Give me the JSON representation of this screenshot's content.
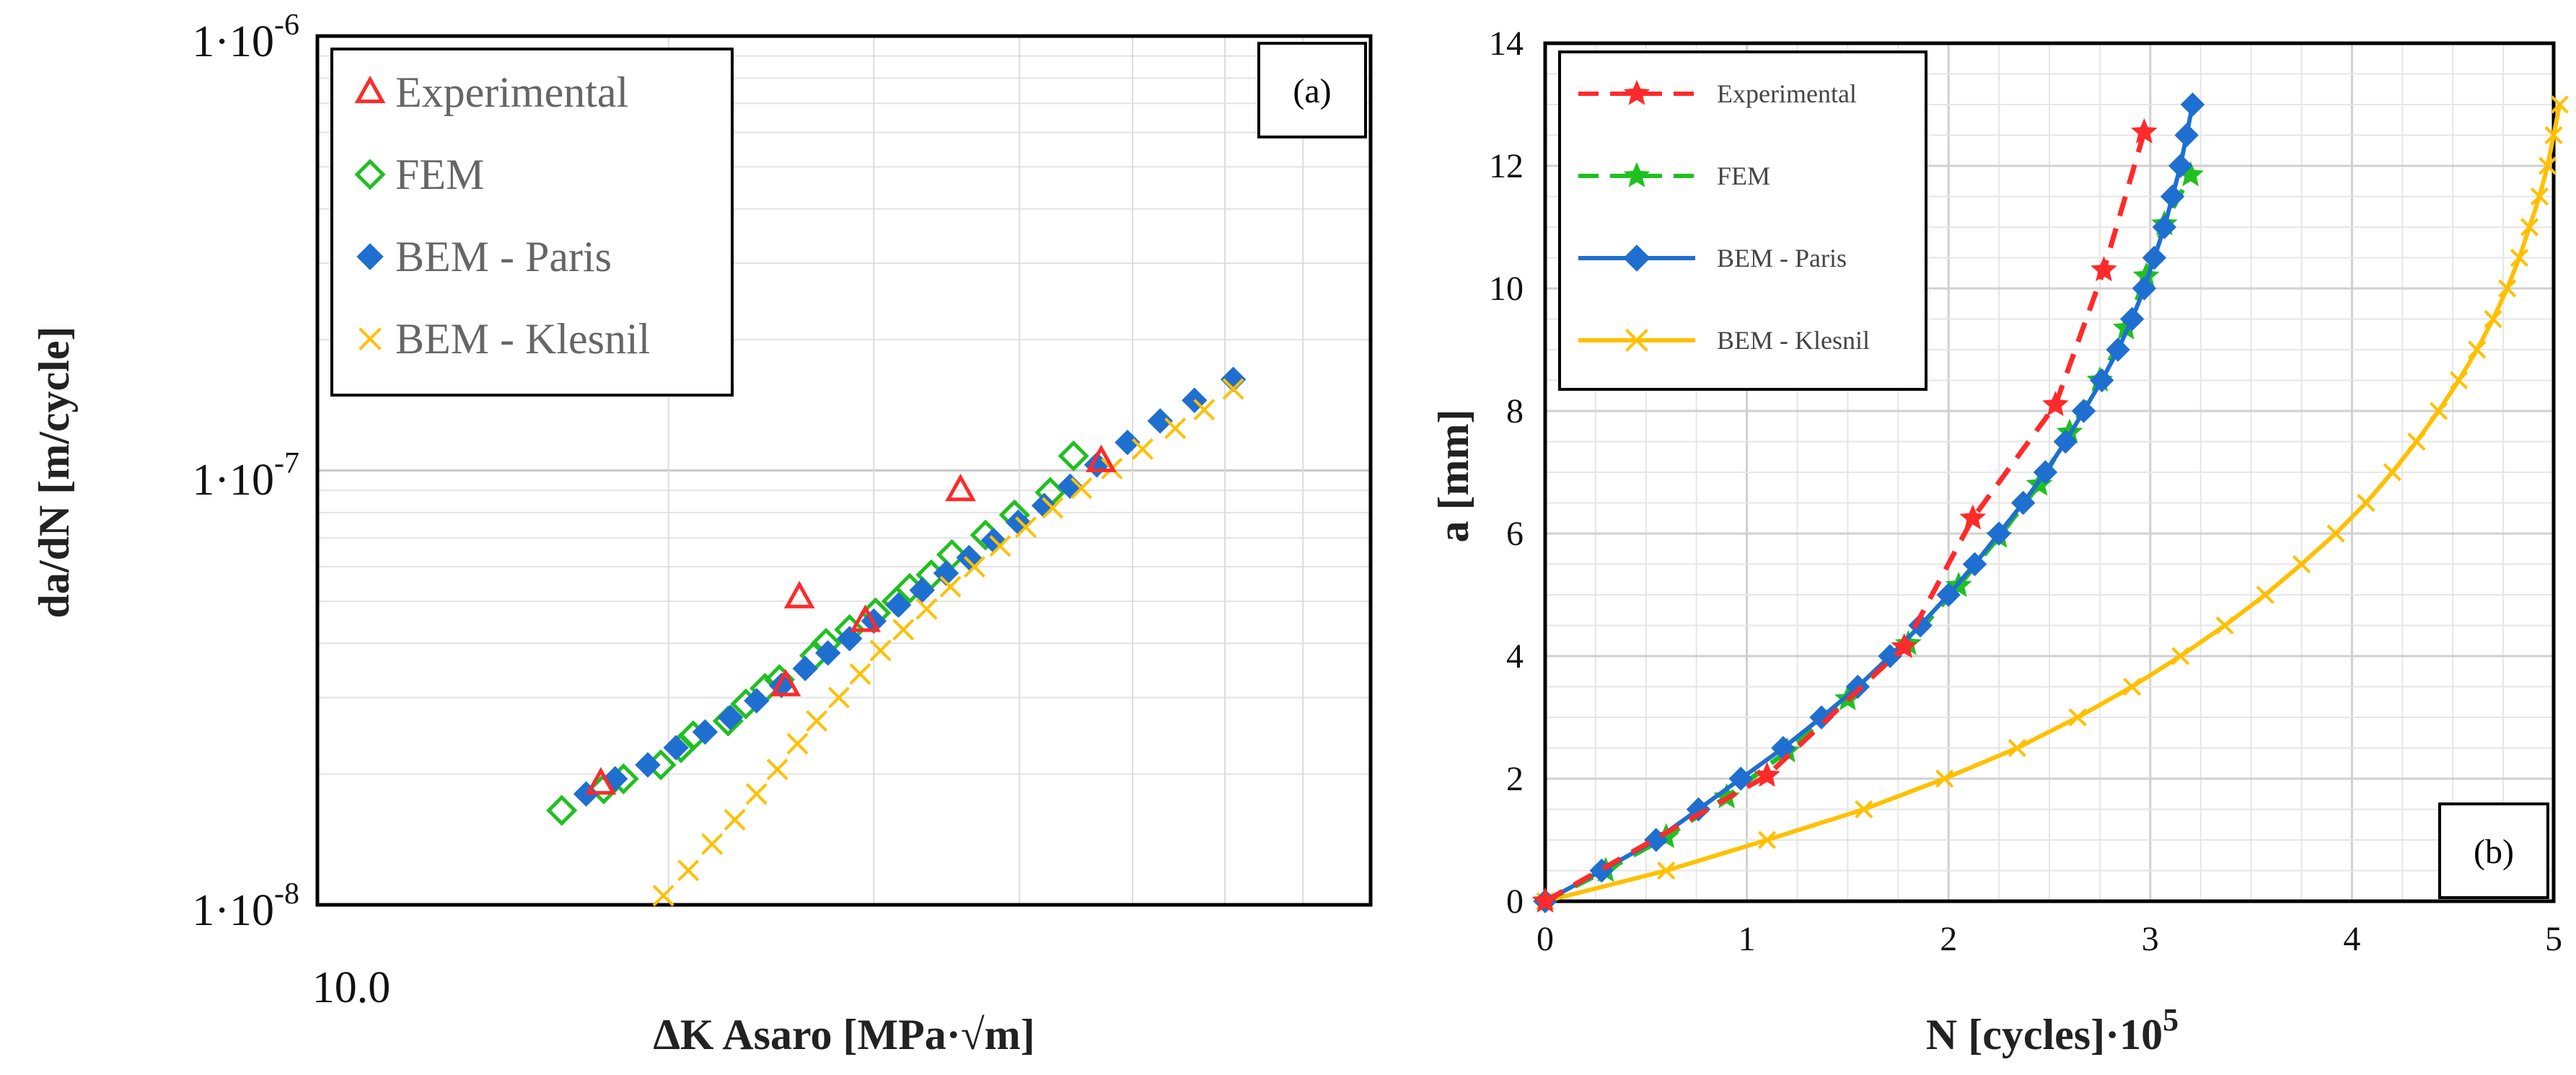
{
  "chart_data": [
    {
      "panel": "a",
      "type": "scatter",
      "panel_label": "(a)",
      "xscale": "log",
      "yscale": "log",
      "xlabel": "ΔK Asaro [MPa·√m]",
      "ylabel": "da/dN [m/cycle]",
      "xlim": [
        10,
        80
      ],
      "ylim": [
        1e-08,
        1e-06
      ],
      "x_tick_labels": [
        {
          "value": 10,
          "label": "10.0"
        }
      ],
      "y_tick_labels": [
        {
          "value": 1e-06,
          "label": "1·10",
          "exp": "-6"
        },
        {
          "value": 1e-07,
          "label": "1·10",
          "exp": "-7"
        },
        {
          "value": 1e-08,
          "label": "1·10",
          "exp": "-8"
        }
      ],
      "grid": true,
      "legend_position": "top-left",
      "series": [
        {
          "name": "Experimental",
          "marker": "triangle-open",
          "color": "#ff2a2a",
          "points": [
            [
              17.5,
              1.9e-08
            ],
            [
              25.2,
              3.2e-08
            ],
            [
              25.9,
              5.1e-08
            ],
            [
              29.5,
              4.5e-08
            ],
            [
              35.6,
              9e-08
            ],
            [
              47.0,
              1.05e-07
            ]
          ]
        },
        {
          "name": "FEM",
          "marker": "diamond-open",
          "color": "#20c020",
          "points": [
            [
              16.2,
              1.65e-08
            ],
            [
              17.6,
              1.85e-08
            ],
            [
              18.3,
              1.95e-08
            ],
            [
              19.7,
              2.1e-08
            ],
            [
              20.5,
              2.3e-08
            ],
            [
              21.0,
              2.45e-08
            ],
            [
              22.5,
              2.65e-08
            ],
            [
              23.3,
              2.9e-08
            ],
            [
              24.2,
              3.15e-08
            ],
            [
              24.9,
              3.3e-08
            ],
            [
              26.7,
              3.75e-08
            ],
            [
              27.3,
              4e-08
            ],
            [
              28.6,
              4.3e-08
            ],
            [
              30.1,
              4.7e-08
            ],
            [
              31.4,
              5e-08
            ],
            [
              32.2,
              5.35e-08
            ],
            [
              33.6,
              5.75e-08
            ],
            [
              35.0,
              6.4e-08
            ],
            [
              37.4,
              7.1e-08
            ],
            [
              39.6,
              7.9e-08
            ],
            [
              42.5,
              8.9e-08
            ],
            [
              44.5,
              1.08e-07
            ]
          ]
        },
        {
          "name": "BEM - Paris",
          "marker": "diamond-filled",
          "color": "#1f6fd0",
          "points": [
            [
              17.0,
              1.8e-08
            ],
            [
              18.0,
              1.95e-08
            ],
            [
              19.2,
              2.1e-08
            ],
            [
              20.3,
              2.3e-08
            ],
            [
              21.5,
              2.5e-08
            ],
            [
              22.6,
              2.7e-08
            ],
            [
              23.8,
              2.95e-08
            ],
            [
              25.0,
              3.2e-08
            ],
            [
              26.2,
              3.5e-08
            ],
            [
              27.4,
              3.8e-08
            ],
            [
              28.6,
              4.1e-08
            ],
            [
              30.0,
              4.5e-08
            ],
            [
              31.5,
              4.9e-08
            ],
            [
              33.0,
              5.3e-08
            ],
            [
              34.6,
              5.8e-08
            ],
            [
              36.2,
              6.3e-08
            ],
            [
              38.0,
              6.9e-08
            ],
            [
              39.9,
              7.6e-08
            ],
            [
              42.0,
              8.3e-08
            ],
            [
              44.2,
              9.2e-08
            ],
            [
              46.6,
              1.03e-07
            ],
            [
              49.5,
              1.16e-07
            ],
            [
              52.8,
              1.3e-07
            ],
            [
              56.5,
              1.45e-07
            ],
            [
              61.0,
              1.62e-07
            ]
          ]
        },
        {
          "name": "BEM - Klesnil",
          "marker": "x",
          "color": "#ffc000",
          "points": [
            [
              19.8,
              1.05e-08
            ],
            [
              20.8,
              1.2e-08
            ],
            [
              21.8,
              1.38e-08
            ],
            [
              22.8,
              1.57e-08
            ],
            [
              23.8,
              1.8e-08
            ],
            [
              24.8,
              2.05e-08
            ],
            [
              25.8,
              2.35e-08
            ],
            [
              26.8,
              2.65e-08
            ],
            [
              28.0,
              3e-08
            ],
            [
              29.2,
              3.4e-08
            ],
            [
              30.4,
              3.85e-08
            ],
            [
              31.8,
              4.3e-08
            ],
            [
              33.3,
              4.8e-08
            ],
            [
              34.9,
              5.4e-08
            ],
            [
              36.6,
              6e-08
            ],
            [
              38.5,
              6.7e-08
            ],
            [
              40.5,
              7.4e-08
            ],
            [
              42.7,
              8.2e-08
            ],
            [
              45.2,
              9.1e-08
            ],
            [
              48.0,
              1.01e-07
            ],
            [
              51.0,
              1.12e-07
            ],
            [
              54.4,
              1.25e-07
            ],
            [
              57.6,
              1.38e-07
            ],
            [
              61.0,
              1.54e-07
            ]
          ]
        }
      ]
    },
    {
      "panel": "b",
      "type": "line",
      "panel_label": "(b)",
      "xlabel": "N [cycles]·10",
      "xlabel_exp": "5",
      "ylabel": "a [mm]",
      "xlim": [
        0,
        5
      ],
      "ylim": [
        0,
        14
      ],
      "x_ticks": [
        "0",
        "1",
        "2",
        "3",
        "4",
        "5"
      ],
      "y_ticks": [
        "0",
        "2",
        "4",
        "6",
        "8",
        "10",
        "12",
        "14"
      ],
      "grid": true,
      "legend_position": "top-left",
      "series": [
        {
          "name": "Experimental",
          "marker": "star",
          "line": "dashed",
          "color": "#ff2a2a",
          "points": [
            [
              0,
              0
            ],
            [
              1.1,
              2.05
            ],
            [
              1.78,
              4.15
            ],
            [
              2.12,
              6.25
            ],
            [
              2.53,
              8.1
            ],
            [
              2.77,
              10.3
            ],
            [
              2.97,
              12.55
            ]
          ]
        },
        {
          "name": "FEM",
          "marker": "star",
          "line": "dashed",
          "color": "#20c020",
          "points": [
            [
              0,
              0
            ],
            [
              0.3,
              0.5
            ],
            [
              0.6,
              1.05
            ],
            [
              0.9,
              1.7
            ],
            [
              1.2,
              2.45
            ],
            [
              1.5,
              3.3
            ],
            [
              1.8,
              4.2
            ],
            [
              2.05,
              5.15
            ],
            [
              2.25,
              5.95
            ],
            [
              2.45,
              6.8
            ],
            [
              2.6,
              7.65
            ],
            [
              2.75,
              8.5
            ],
            [
              2.88,
              9.35
            ],
            [
              2.98,
              10.2
            ],
            [
              3.07,
              11.05
            ],
            [
              3.2,
              11.85
            ]
          ]
        },
        {
          "name": "BEM - Paris",
          "marker": "diamond",
          "line": "solid",
          "color": "#1f6fd0",
          "points": [
            [
              0,
              0
            ],
            [
              0.28,
              0.5
            ],
            [
              0.55,
              1.0
            ],
            [
              0.76,
              1.5
            ],
            [
              0.97,
              2.0
            ],
            [
              1.18,
              2.5
            ],
            [
              1.37,
              3.0
            ],
            [
              1.55,
              3.5
            ],
            [
              1.71,
              4.0
            ],
            [
              1.86,
              4.5
            ],
            [
              2.0,
              5.0
            ],
            [
              2.13,
              5.5
            ],
            [
              2.25,
              6.0
            ],
            [
              2.37,
              6.5
            ],
            [
              2.48,
              7.0
            ],
            [
              2.58,
              7.5
            ],
            [
              2.67,
              8.0
            ],
            [
              2.76,
              8.5
            ],
            [
              2.84,
              9.0
            ],
            [
              2.91,
              9.5
            ],
            [
              2.97,
              10.0
            ],
            [
              3.02,
              10.5
            ],
            [
              3.07,
              11.0
            ],
            [
              3.11,
              11.5
            ],
            [
              3.15,
              12.0
            ],
            [
              3.18,
              12.5
            ],
            [
              3.21,
              13.0
            ]
          ]
        },
        {
          "name": "BEM - Klesnil",
          "marker": "x",
          "line": "solid",
          "color": "#ffc000",
          "points": [
            [
              0,
              0
            ],
            [
              0.6,
              0.5
            ],
            [
              1.1,
              1.0
            ],
            [
              1.58,
              1.5
            ],
            [
              1.98,
              2.0
            ],
            [
              2.34,
              2.5
            ],
            [
              2.64,
              3.0
            ],
            [
              2.91,
              3.5
            ],
            [
              3.15,
              4.0
            ],
            [
              3.37,
              4.5
            ],
            [
              3.57,
              5.0
            ],
            [
              3.75,
              5.5
            ],
            [
              3.92,
              6.0
            ],
            [
              4.07,
              6.5
            ],
            [
              4.2,
              7.0
            ],
            [
              4.32,
              7.5
            ],
            [
              4.43,
              8.0
            ],
            [
              4.53,
              8.5
            ],
            [
              4.62,
              9.0
            ],
            [
              4.7,
              9.5
            ],
            [
              4.77,
              10.0
            ],
            [
              4.83,
              10.5
            ],
            [
              4.88,
              11.0
            ],
            [
              4.93,
              11.5
            ],
            [
              4.97,
              12.0
            ],
            [
              5.0,
              12.5
            ],
            [
              5.03,
              13.0
            ]
          ]
        }
      ]
    }
  ]
}
